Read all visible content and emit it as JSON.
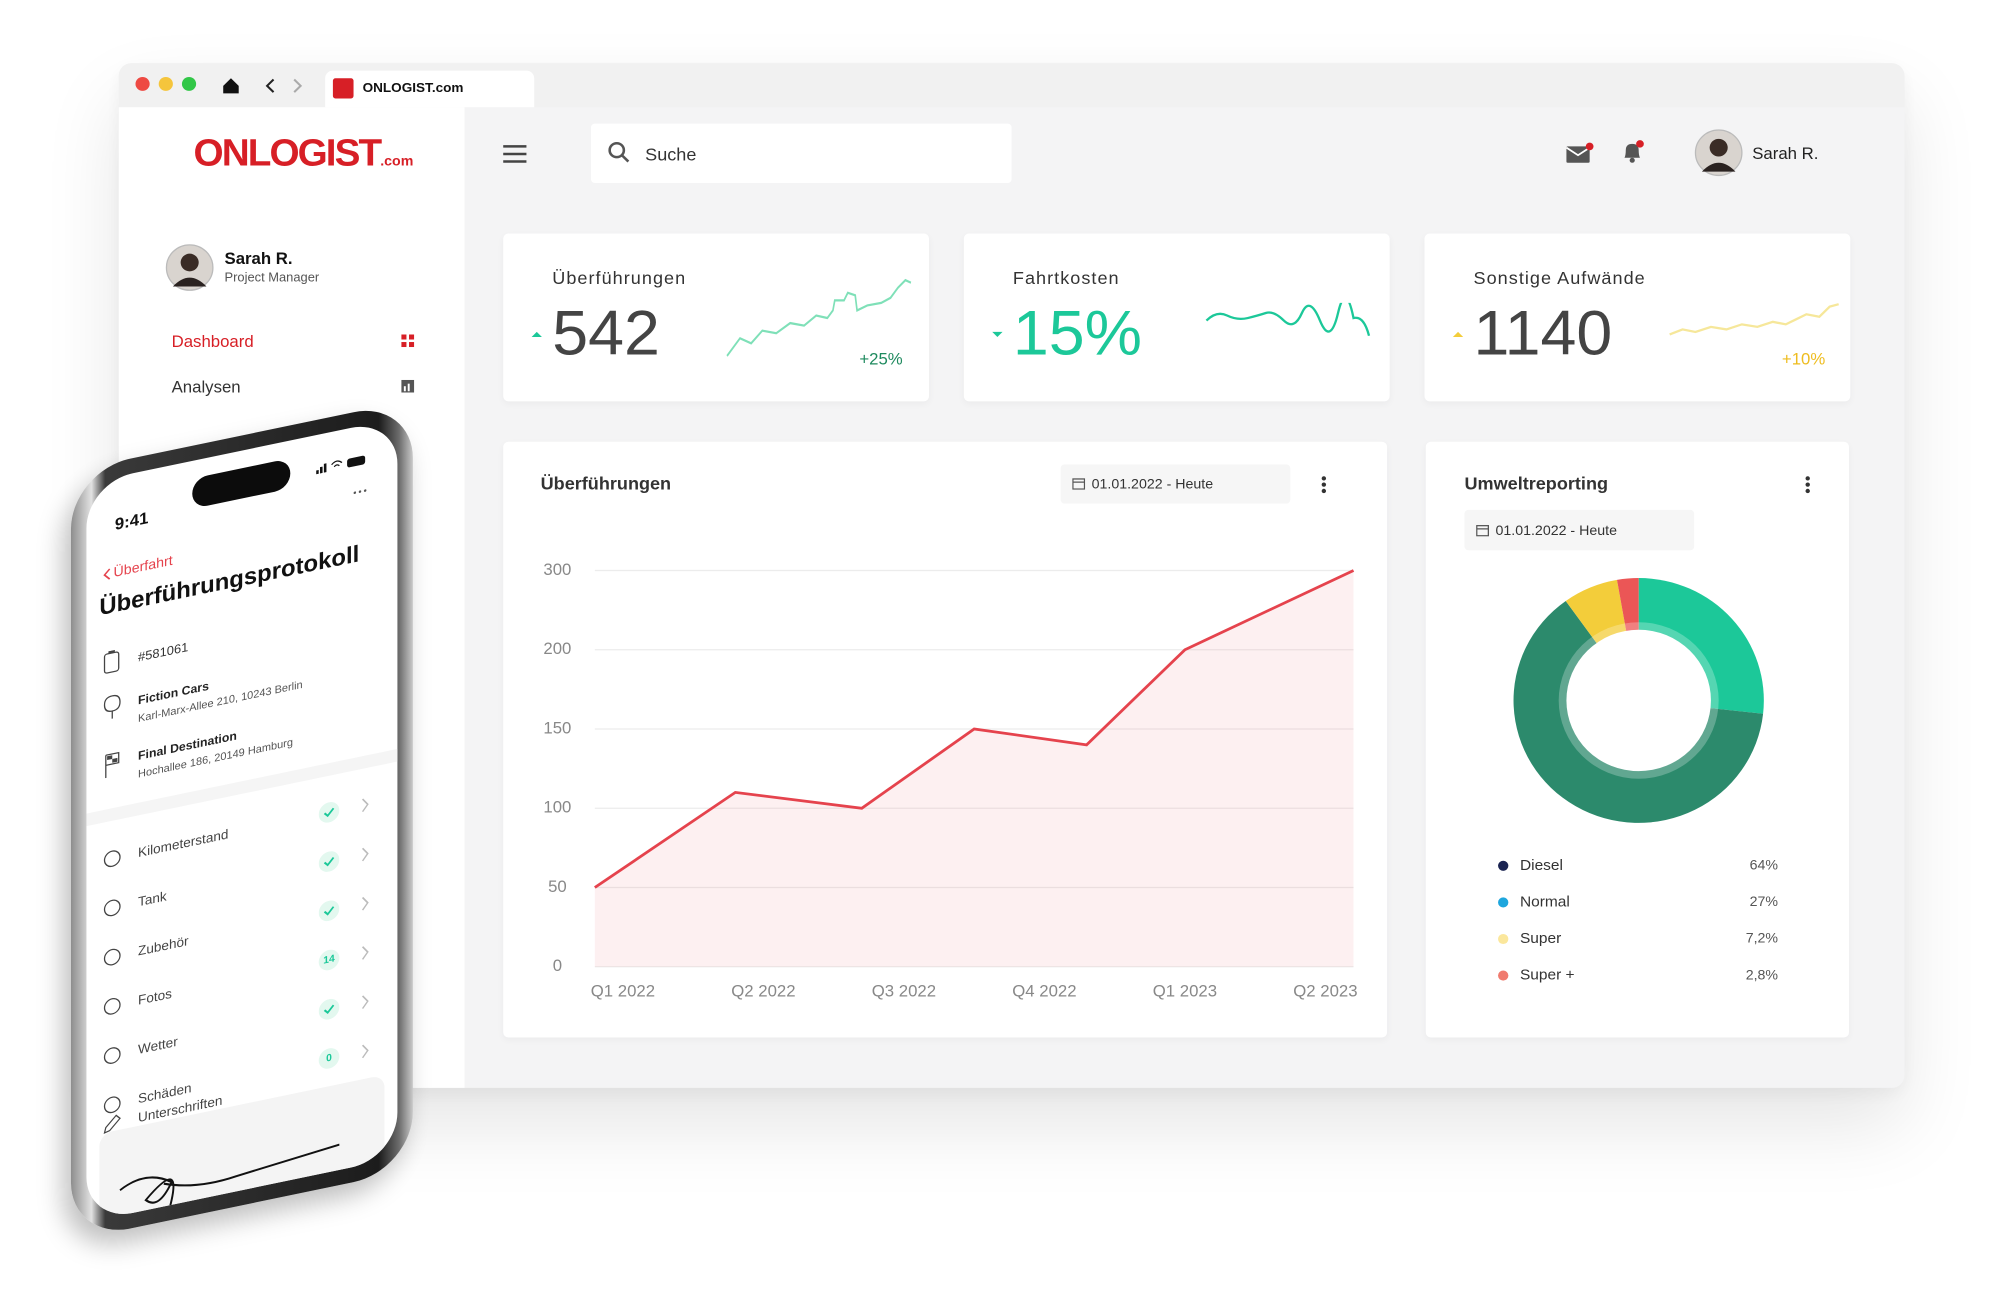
{
  "browser": {
    "tab_title": "ONLOGIST.com"
  },
  "sidebar": {
    "logo": "ONLOGIST",
    "logo_suffix": ".com",
    "user_name": "Sarah R.",
    "user_role": "Project Manager",
    "nav": [
      "Dashboard",
      "Analysen"
    ]
  },
  "topbar": {
    "search_placeholder": "Suche",
    "user_name": "Sarah R."
  },
  "kpis": [
    {
      "title": "Überführungen",
      "value": "542",
      "change": "+25%"
    },
    {
      "title": "Fahrtkosten",
      "value": "15%"
    },
    {
      "title": "Sonstige Aufwände",
      "value": "1140",
      "change": "+10%"
    }
  ],
  "chart_data": [
    {
      "type": "line",
      "title": "Überführungen",
      "date_range": "01.01.2022 - Heute",
      "x": [
        -0.2,
        0.8,
        1.7,
        2.5,
        3.3,
        4,
        5.2
      ],
      "values": [
        50,
        110,
        100,
        150,
        140,
        200,
        300
      ],
      "color": "#e5434d",
      "xlim": [
        -0.2,
        5.2
      ],
      "xticks": [
        {
          "value": 0,
          "label": "Q1 2022"
        },
        {
          "value": 1,
          "label": "Q2 2022"
        },
        {
          "value": 2,
          "label": "Q3 2022"
        },
        {
          "value": 3,
          "label": "Q4 2022"
        },
        {
          "value": 4,
          "label": "Q1 2023"
        },
        {
          "value": 5,
          "label": "Q2 2023"
        }
      ],
      "ylim": [
        0,
        300
      ],
      "yticks": [
        0,
        50,
        100,
        150,
        200,
        300
      ],
      "grid": true
    },
    {
      "type": "pie",
      "title": "Umweltreporting",
      "date_range": "01.01.2022 - Heute",
      "categories": [
        "Diesel",
        "Normal",
        "Super",
        "Super +"
      ],
      "values": [
        64,
        27,
        7.2,
        2.8
      ],
      "value_labels": [
        "64%",
        "27%",
        "7,2%",
        "2,8%"
      ],
      "colors": [
        "#2c8a6c",
        "#1cc899",
        "#f3cd3a",
        "#eb5656"
      ],
      "legend_colors": [
        "#1b2452",
        "#1ea6dd",
        "#fbe79c",
        "#f07b6f"
      ]
    }
  ],
  "phone": {
    "time": "9:41",
    "back": "Überfahrt",
    "title": "Überführungsprotokoll",
    "order_id": "#581061",
    "pickup_name": "Fiction Cars",
    "pickup_address": "Karl-Marx-Allee 210, 10243 Berlin",
    "destination_name": "Final Destination",
    "destination_address": "Hochallee 186, 20149 Hamburg",
    "checklist": [
      {
        "label": "Kilometerstand"
      },
      {
        "label": "Tank"
      },
      {
        "label": "Zubehör"
      },
      {
        "label": "Fotos",
        "badge": "14"
      },
      {
        "label": "Wetter"
      },
      {
        "label": "Schäden",
        "badge": "0"
      }
    ],
    "signature_label": "Unterschriften"
  }
}
